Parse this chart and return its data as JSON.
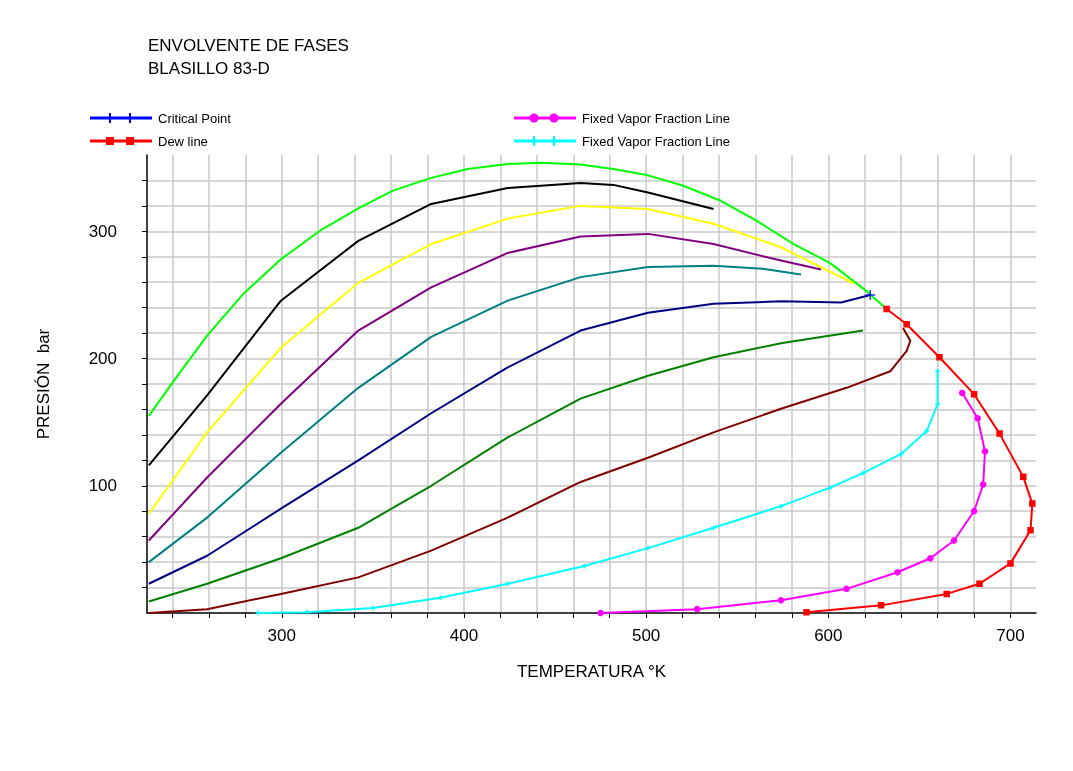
{
  "chart_data": {
    "type": "line",
    "title": "ENVOLVENTE DE FASES",
    "subtitle": "BLASILLO 83-D",
    "xlabel": "TEMPERATURA °K",
    "ylabel": "PRESIÓN  bar",
    "xlim": [
      226,
      714
    ],
    "ylim": [
      0,
      360
    ],
    "xticks": [
      {
        "value": 240,
        "label": null
      },
      {
        "value": 260,
        "label": null
      },
      {
        "value": 280,
        "label": null
      },
      300,
      {
        "value": 320,
        "label": null
      },
      {
        "value": 340,
        "label": null
      },
      {
        "value": 360,
        "label": null
      },
      {
        "value": 380,
        "label": null
      },
      400,
      {
        "value": 420,
        "label": null
      },
      {
        "value": 440,
        "label": null
      },
      {
        "value": 460,
        "label": null
      },
      {
        "value": 480,
        "label": null
      },
      500,
      {
        "value": 520,
        "label": null
      },
      {
        "value": 540,
        "label": null
      },
      {
        "value": 560,
        "label": null
      },
      {
        "value": 580,
        "label": null
      },
      600,
      {
        "value": 620,
        "label": null
      },
      {
        "value": 640,
        "label": null
      },
      {
        "value": 660,
        "label": null
      },
      {
        "value": 680,
        "label": null
      },
      700
    ],
    "yticks": [
      {
        "value": 20,
        "label": null
      },
      {
        "value": 40,
        "label": null
      },
      {
        "value": 60,
        "label": null
      },
      {
        "value": 80,
        "label": null
      },
      100,
      {
        "value": 120,
        "label": null
      },
      {
        "value": 140,
        "label": null
      },
      {
        "value": 160,
        "label": null
      },
      {
        "value": 180,
        "label": null
      },
      200,
      {
        "value": 220,
        "label": null
      },
      {
        "value": 240,
        "label": null
      },
      {
        "value": 260,
        "label": null
      },
      {
        "value": 280,
        "label": null
      },
      300,
      {
        "value": 320,
        "label": null
      },
      {
        "value": 340,
        "label": null
      }
    ],
    "grid": true,
    "legend": "top",
    "marker": "none",
    "line_style": "solid",
    "series": [
      {
        "color": "#00ff00",
        "x": [
          227,
          241,
          259,
          279,
          299.5,
          321,
          342,
          361,
          382,
          402,
          424,
          442,
          464,
          482,
          501,
          520,
          541,
          561,
          581,
          601,
          621,
          632
        ],
        "values": [
          155,
          183,
          218,
          251,
          278,
          300.5,
          318,
          332,
          342,
          349,
          353,
          354,
          352.5,
          349,
          344,
          336,
          324,
          308,
          290,
          275,
          253,
          239
        ]
      },
      {
        "color": "#000000",
        "x": [
          227,
          259,
          299.5,
          342,
          382,
          424,
          464,
          482,
          501,
          537
        ],
        "values": [
          116,
          171,
          245.5,
          292.5,
          321.5,
          334,
          338,
          336.5,
          330.5,
          317.5
        ]
      },
      {
        "color": "#ffff00",
        "x": [
          227,
          259,
          299.5,
          342,
          382,
          424,
          464,
          501,
          537,
          574,
          614
        ],
        "values": [
          78,
          142,
          208.5,
          259.5,
          290,
          310,
          320,
          317.5,
          306,
          287.5,
          259
        ]
      },
      {
        "color": "#800080",
        "x": [
          227,
          259,
          299.5,
          342,
          382,
          424,
          464,
          501,
          537,
          574,
          596
        ],
        "values": [
          57,
          106.5,
          164.5,
          222,
          256,
          283,
          296,
          298,
          290,
          277,
          270
        ]
      },
      {
        "color": "#008080",
        "x": [
          227,
          259,
          299.5,
          342,
          382,
          424,
          464,
          501,
          537,
          564,
          585
        ],
        "values": [
          40,
          75,
          126,
          177,
          217,
          245.5,
          264,
          272,
          273,
          270.5,
          266
        ]
      },
      {
        "color": "#000080",
        "x": [
          227,
          259,
          299.5,
          342,
          382,
          424,
          464,
          501,
          537,
          574,
          607,
          623
        ],
        "values": [
          23,
          45,
          82,
          120,
          157,
          193,
          222,
          236,
          243,
          245,
          244,
          250
        ]
      },
      {
        "color": "#008000",
        "x": [
          227,
          259,
          299.5,
          342,
          382,
          424,
          464,
          501,
          537,
          574,
          619
        ],
        "values": [
          9,
          23,
          43,
          67,
          100,
          138,
          168.5,
          186.5,
          201,
          212,
          222
        ]
      },
      {
        "color": "#800000",
        "x": [
          227,
          259,
          299.5,
          342,
          382,
          424,
          464,
          501,
          537,
          574,
          610,
          634,
          643,
          645,
          641
        ],
        "values": [
          0,
          3,
          15,
          28,
          49,
          75,
          103,
          122,
          142,
          160.5,
          177,
          190,
          206,
          214,
          224
        ]
      },
      {
        "name": "Critical Point",
        "type": "scatter",
        "color": "#0000ff",
        "marker": "cross",
        "x": [
          623
        ],
        "values": [
          250
        ]
      },
      {
        "name": "Dew line",
        "color": "#ff0000",
        "marker": "square",
        "x": [
          632,
          643,
          661,
          680,
          694,
          707,
          712,
          711,
          700,
          683,
          665,
          629,
          588
        ],
        "values": [
          239,
          227,
          201,
          172,
          141,
          107,
          86,
          65,
          39,
          23,
          15,
          6,
          0.5
        ]
      },
      {
        "name": "Fixed Vapor Fraction Line",
        "color": "#ff00ff",
        "marker": "circle",
        "x": [
          673.5,
          682,
          686,
          685,
          680,
          669,
          656,
          638,
          610,
          574,
          528,
          475
        ],
        "values": [
          173,
          153,
          127,
          101,
          80,
          57,
          43,
          32,
          19,
          10,
          3,
          0
        ]
      },
      {
        "name": "Fixed Vapor Fraction Line",
        "color": "#00ffff",
        "marker": "cross",
        "x": [
          660,
          660,
          654,
          640,
          619,
          601,
          574,
          537,
          501,
          466,
          424,
          387,
          350,
          314,
          287
        ],
        "values": [
          190,
          164,
          143,
          125,
          110,
          98.5,
          84,
          67,
          51,
          37,
          23,
          12,
          4,
          0.5,
          0
        ]
      }
    ]
  }
}
